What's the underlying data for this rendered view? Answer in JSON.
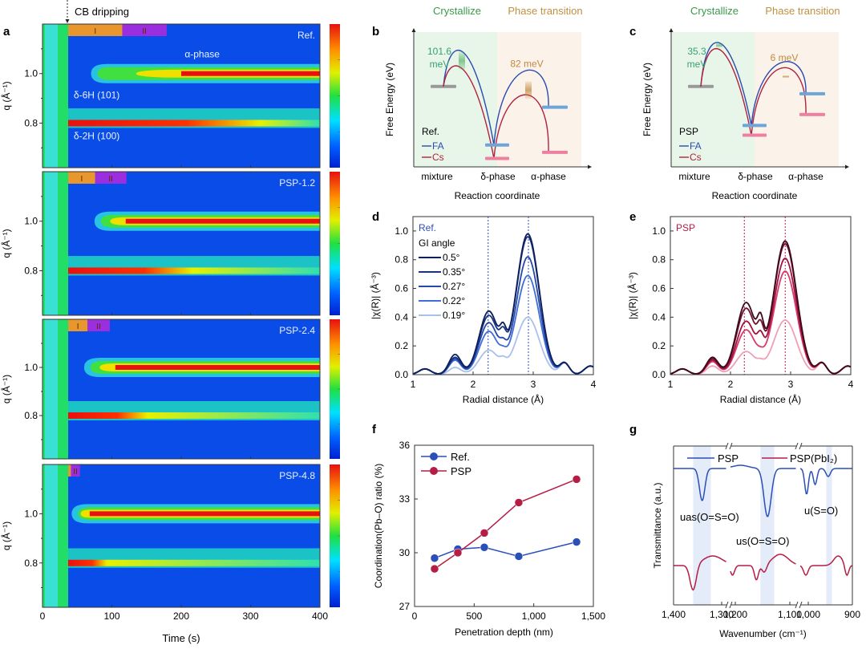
{
  "panel_labels": {
    "a": "a",
    "b": "b",
    "c": "c",
    "d": "d",
    "e": "e",
    "f": "f",
    "g": "g"
  },
  "colors": {
    "fa_blue": "#2b4bb0",
    "cs_red": "#b0223e",
    "crystallize_green": "#3a9a4a",
    "transition_gold": "#c09040",
    "stage_I": "#e8962e",
    "stage_II": "#9b2fe0",
    "ref_blue": "#2a4fb8",
    "psp_red": "#b51d45"
  },
  "chart_data": [
    {
      "id": "a",
      "type": "heatmap",
      "annotation_top": "CB dripping",
      "xlabel": "Time (s)",
      "ylabel": "q (Å⁻¹)",
      "xlim": [
        0,
        400
      ],
      "ylim": [
        0.62,
        1.2
      ],
      "xticks": [
        0,
        100,
        200,
        300,
        400
      ],
      "yticks": [
        0.8,
        1.0
      ],
      "cb_dripping_time": 37,
      "colormap": "jet",
      "subplots": [
        {
          "name": "Ref.",
          "alpha_onset": 70,
          "alpha_red": 200,
          "delta_red_end": 250,
          "stages": [
            {
              "label": "I",
              "from": 37,
              "to": 115
            },
            {
              "label": "II",
              "from": 115,
              "to": 179
            }
          ],
          "labels": [
            {
              "text": "α-phase",
              "t": 205,
              "q": 1.065
            },
            {
              "text": "δ-6H (101)",
              "t": 45,
              "q": 0.9
            },
            {
              "text": "δ-2H (100)",
              "t": 45,
              "q": 0.735
            }
          ]
        },
        {
          "name": "PSP-1.2",
          "alpha_onset": 75,
          "alpha_red": 120,
          "delta_red_end": 175,
          "stages": [
            {
              "label": "I",
              "from": 37,
              "to": 76
            },
            {
              "label": "II",
              "from": 76,
              "to": 121
            }
          ],
          "labels": []
        },
        {
          "name": "PSP-2.4",
          "alpha_onset": 60,
          "alpha_red": 105,
          "delta_red_end": 125,
          "stages": [
            {
              "label": "I",
              "from": 37,
              "to": 65
            },
            {
              "label": "II",
              "from": 65,
              "to": 97
            }
          ],
          "labels": []
        },
        {
          "name": "PSP-4.8",
          "alpha_onset": 42,
          "alpha_red": 68,
          "delta_red_end": 80,
          "stages": [
            {
              "label": "I",
              "from": 37,
              "to": 41
            },
            {
              "label": "II",
              "from": 41,
              "to": 54
            }
          ],
          "labels": []
        }
      ]
    },
    {
      "id": "b",
      "type": "line",
      "title_left": "Crystallize",
      "title_right": "Phase transition",
      "xlabel": "Reaction coordinate",
      "ylabel": "Free Energy (eV)",
      "xticks": [
        "mixture",
        "δ-phase",
        "α-phase"
      ],
      "legend_title": "Ref.",
      "legend": [
        "FA",
        "Cs"
      ],
      "barrier_labels": [
        "101.6\nmeV",
        "82 meV"
      ],
      "levels": {
        "mixture": 0.62,
        "FA": {
          "ts1": 0.93,
          "delta": 0.14,
          "ts2": 0.7,
          "alpha": 0.45
        },
        "Cs": {
          "ts1": 0.76,
          "delta": 0.03,
          "ts2": 0.52,
          "alpha": 0.08
        }
      }
    },
    {
      "id": "c",
      "type": "line",
      "title_left": "Crystallize",
      "title_right": "Phase transition",
      "xlabel": "Reaction coordinate",
      "ylabel": "Free Energy (eV)",
      "xticks": [
        "mixture",
        "δ-phase",
        "α-phase"
      ],
      "legend_title": "PSP",
      "legend": [
        "FA",
        "Cs"
      ],
      "barrier_labels": [
        "35.3\nmeV",
        "6 meV"
      ],
      "levels": {
        "mixture": 0.62,
        "FA": {
          "ts1": 1.0,
          "delta": 0.3,
          "ts2": 0.75,
          "alpha": 0.56
        },
        "Cs": {
          "ts1": 0.94,
          "delta": 0.22,
          "ts2": 0.73,
          "alpha": 0.39
        }
      }
    },
    {
      "id": "d",
      "type": "line",
      "label": "Ref.",
      "legend_title": "GI angle",
      "xlabel": "Radial distance (Å)",
      "ylabel": "|χ(R)| (Å⁻³)",
      "xlim": [
        1,
        4
      ],
      "ylim": [
        0,
        1.1
      ],
      "xticks": [
        1,
        2,
        3,
        4
      ],
      "yticks": [
        0.0,
        0.2,
        0.4,
        0.6,
        0.8,
        1.0
      ],
      "vlines": [
        2.25,
        2.92
      ],
      "series": [
        {
          "name": "0.5°",
          "color": "#0d1f5c",
          "p1": 0.44,
          "p2": 0.98,
          "valley": 0.21,
          "sh": 0.14
        },
        {
          "name": "0.35°",
          "color": "#1a3380",
          "p1": 0.41,
          "p2": 0.96,
          "valley": 0.18,
          "sh": 0.12
        },
        {
          "name": "0.27°",
          "color": "#2848a8",
          "p1": 0.36,
          "p2": 0.82,
          "valley": 0.1,
          "sh": 0.11
        },
        {
          "name": "0.22°",
          "color": "#3d6fd6",
          "p1": 0.3,
          "p2": 0.69,
          "valley": 0.06,
          "sh": 0.1
        },
        {
          "name": "0.19°",
          "color": "#a9c0ec",
          "p1": 0.17,
          "p2": 0.4,
          "valley": 0.06,
          "sh": 0.05
        }
      ]
    },
    {
      "id": "e",
      "type": "line",
      "label": "PSP",
      "xlabel": "Radial distance (Å)",
      "ylabel": "|χ(R)| (Å⁻³)",
      "xlim": [
        1,
        4
      ],
      "ylim": [
        0,
        1.1
      ],
      "xticks": [
        1,
        2,
        3,
        4
      ],
      "yticks": [
        0.0,
        0.2,
        0.4,
        0.6,
        0.8,
        1.0
      ],
      "vlines": [
        2.23,
        2.91
      ],
      "series": [
        {
          "name": "0.5°",
          "color": "#3d0a1a",
          "p1": 0.5,
          "p2": 0.93,
          "valley": 0.3,
          "sh": 0.12
        },
        {
          "name": "0.35°",
          "color": "#6e0f2e",
          "p1": 0.46,
          "p2": 0.91,
          "valley": 0.24,
          "sh": 0.11
        },
        {
          "name": "0.27°",
          "color": "#a11240",
          "p1": 0.37,
          "p2": 0.81,
          "valley": 0.18,
          "sh": 0.1
        },
        {
          "name": "0.22°",
          "color": "#d93a6a",
          "p1": 0.31,
          "p2": 0.72,
          "valley": 0.04,
          "sh": 0.09
        },
        {
          "name": "0.19°",
          "color": "#efa0b6",
          "p1": 0.16,
          "p2": 0.38,
          "valley": 0.04,
          "sh": 0.06
        }
      ]
    },
    {
      "id": "f",
      "type": "line",
      "xlabel": "Penetration depth (nm)",
      "ylabel": "Coordination(Pb–O) ratio (%)",
      "xlim": [
        0,
        1500
      ],
      "ylim": [
        27,
        36
      ],
      "xticks": [
        0,
        500,
        1000,
        1500
      ],
      "xtick_labels": [
        "0",
        "500",
        "1,000",
        "1,500"
      ],
      "yticks": [
        27,
        30,
        33,
        36
      ],
      "x": [
        168,
        363,
        585,
        874,
        1359
      ],
      "series": [
        {
          "name": "Ref.",
          "color": "#2a4fb8",
          "values": [
            29.7,
            30.2,
            30.3,
            29.8,
            30.6
          ]
        },
        {
          "name": "PSP",
          "color": "#b51d45",
          "values": [
            29.1,
            30.0,
            31.1,
            32.8,
            34.1
          ]
        }
      ]
    },
    {
      "id": "g",
      "type": "line",
      "xlabel": "Wavenumber (cm⁻¹)",
      "ylabel": "Transmittance (a.u.)",
      "xtick_labels": [
        "1,400",
        "1,300",
        "1,200",
        "1,100",
        "1,000",
        "900"
      ],
      "legend": [
        "PSP",
        "PSP(PbI₂)"
      ],
      "annotations": [
        "u_as(O=S=O)",
        "u_s(O=S=O)",
        "u(S=O)"
      ],
      "bands": [
        [
          1350,
          1305
        ],
        [
          1150,
          1115
        ],
        [
          970,
          955
        ]
      ],
      "series": [
        {
          "name": "PSP",
          "color": "#2a4fb8"
        },
        {
          "name": "PSP(PbI₂)",
          "color": "#b51d45"
        }
      ]
    }
  ]
}
